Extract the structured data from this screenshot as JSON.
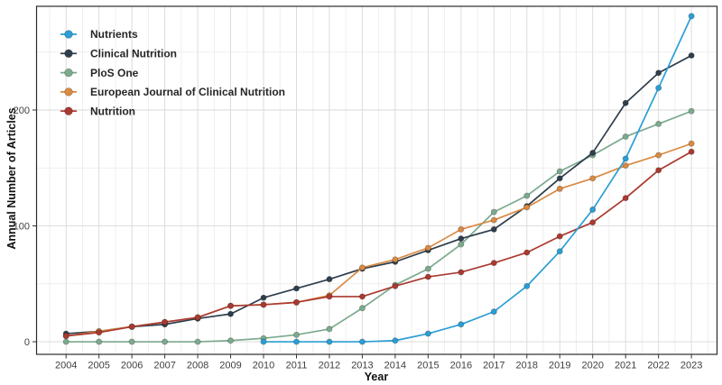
{
  "chart_data": {
    "type": "line",
    "title": "",
    "xlabel": "Year",
    "ylabel": "Annual Number of Articles",
    "x": [
      2004,
      2005,
      2006,
      2007,
      2008,
      2009,
      2010,
      2011,
      2012,
      2013,
      2014,
      2015,
      2016,
      2017,
      2018,
      2019,
      2020,
      2021,
      2022,
      2023
    ],
    "y_ticks": [
      0,
      100,
      200
    ],
    "y_minor_ticks": [
      50,
      150,
      250
    ],
    "ylim": [
      -11,
      289
    ],
    "grid": true,
    "legend_position": "top-left-inside",
    "series": [
      {
        "name": "Nutrients",
        "color": "#2b9ed4",
        "values": [
          null,
          null,
          null,
          null,
          null,
          null,
          0,
          0,
          0,
          0,
          1,
          7,
          15,
          26,
          48,
          78,
          114,
          158,
          219,
          281
        ]
      },
      {
        "name": "Clinical Nutrition",
        "color": "#2f3e4c",
        "values": [
          7,
          9,
          13,
          15,
          20,
          24,
          38,
          46,
          54,
          63,
          69,
          79,
          89,
          97,
          117,
          141,
          163,
          206,
          232,
          247
        ]
      },
      {
        "name": "PloS One",
        "color": "#7caa8e",
        "values": [
          0,
          0,
          0,
          0,
          0,
          1,
          3,
          6,
          11,
          29,
          49,
          63,
          84,
          112,
          126,
          147,
          161,
          177,
          188,
          199
        ]
      },
      {
        "name": "European Journal of Clinical Nutrition",
        "color": "#d98a43",
        "values": [
          5,
          9,
          13,
          17,
          21,
          31,
          32,
          34,
          40,
          64,
          71,
          81,
          97,
          105,
          116,
          132,
          141,
          152,
          161,
          171
        ]
      },
      {
        "name": "Nutrition",
        "color": "#aa3a31",
        "values": [
          5,
          8,
          13,
          17,
          21,
          31,
          32,
          34,
          39,
          39,
          48,
          56,
          60,
          68,
          77,
          91,
          103,
          124,
          148,
          164
        ]
      }
    ],
    "style": {
      "panel_border_color": "#2b2b2b",
      "major_grid_color": "#d9d9d9",
      "minor_grid_color": "#ebebeb",
      "tick_label_color": "#404040",
      "background": "#ffffff"
    }
  }
}
